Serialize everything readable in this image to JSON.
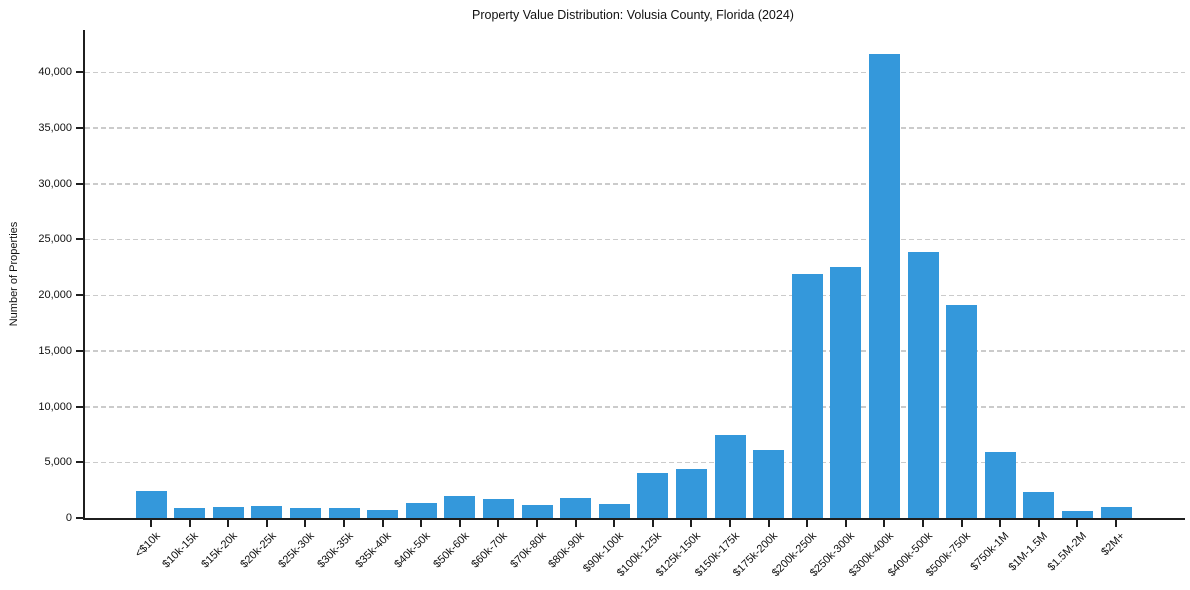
{
  "chart_data": {
    "type": "bar",
    "title": "Property Value Distribution: Volusia County, Florida (2024)",
    "xlabel": "",
    "ylabel": "Number of Properties",
    "categories": [
      "<$10k",
      "$10k-15k",
      "$15k-20k",
      "$20k-25k",
      "$25k-30k",
      "$30k-35k",
      "$35k-40k",
      "$40k-50k",
      "$50k-60k",
      "$60k-70k",
      "$70k-80k",
      "$80k-90k",
      "$90k-100k",
      "$100k-125k",
      "$125k-150k",
      "$150k-175k",
      "$175k-200k",
      "$200k-250k",
      "$250k-300k",
      "$300k-400k",
      "$400k-500k",
      "$500k-750k",
      "$750k-1M",
      "$1M-1.5M",
      "$1.5M-2M",
      "$2M+"
    ],
    "values": [
      2400,
      900,
      950,
      1050,
      900,
      900,
      700,
      1350,
      1950,
      1700,
      1150,
      1800,
      1300,
      4000,
      4400,
      7450,
      6100,
      21900,
      22500,
      41650,
      23900,
      19100,
      5900,
      2350,
      600,
      1000
    ],
    "yticks": [
      0,
      5000,
      10000,
      15000,
      20000,
      25000,
      30000,
      35000,
      40000
    ],
    "ytick_labels": [
      "0",
      "5,000",
      "10,000",
      "15,000",
      "20,000",
      "25,000",
      "30,000",
      "35,000",
      "40,000"
    ],
    "ylim": [
      0,
      43770
    ],
    "grid": "horizontal-dashed",
    "legend": "none",
    "bar_color": "#3498db",
    "grid_color": "#cbcbcb",
    "axis_color": "#1f1f1f"
  }
}
